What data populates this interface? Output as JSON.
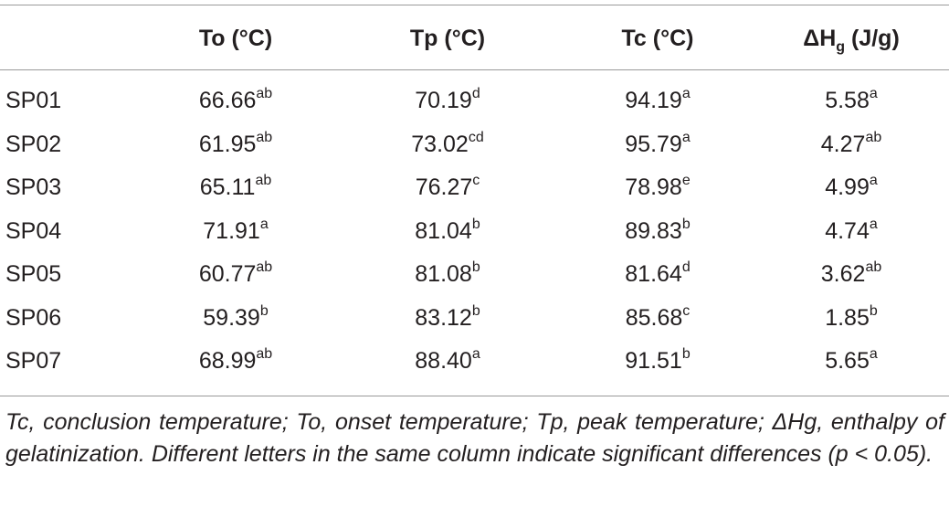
{
  "table": {
    "headers": {
      "col_id": "",
      "to": "To (°C)",
      "tp": "Tp (°C)",
      "tc": "Tc (°C)",
      "dh_delta": "ΔH",
      "dh_sub": "g",
      "dh_unit": " (J/g)"
    },
    "rows": [
      {
        "id": "SP01",
        "to": "66.66",
        "to_sup": "ab",
        "tp": "70.19",
        "tp_sup": "d",
        "tc": "94.19",
        "tc_sup": "a",
        "dh": "5.58",
        "dh_sup": "a"
      },
      {
        "id": "SP02",
        "to": "61.95",
        "to_sup": "ab",
        "tp": "73.02",
        "tp_sup": "cd",
        "tc": "95.79",
        "tc_sup": "a",
        "dh": "4.27",
        "dh_sup": "ab"
      },
      {
        "id": "SP03",
        "to": "65.11",
        "to_sup": "ab",
        "tp": "76.27",
        "tp_sup": "c",
        "tc": "78.98",
        "tc_sup": "e",
        "dh": "4.99",
        "dh_sup": "a"
      },
      {
        "id": "SP04",
        "to": "71.91",
        "to_sup": "a",
        "tp": "81.04",
        "tp_sup": "b",
        "tc": "89.83",
        "tc_sup": "b",
        "dh": "4.74",
        "dh_sup": "a"
      },
      {
        "id": "SP05",
        "to": "60.77",
        "to_sup": "ab",
        "tp": "81.08",
        "tp_sup": "b",
        "tc": "81.64",
        "tc_sup": "d",
        "dh": "3.62",
        "dh_sup": "ab"
      },
      {
        "id": "SP06",
        "to": "59.39",
        "to_sup": "b",
        "tp": "83.12",
        "tp_sup": "b",
        "tc": "85.68",
        "tc_sup": "c",
        "dh": "1.85",
        "dh_sup": "b"
      },
      {
        "id": "SP07",
        "to": "68.99",
        "to_sup": "ab",
        "tp": "88.40",
        "tp_sup": "a",
        "tc": "91.51",
        "tc_sup": "b",
        "dh": "5.65",
        "dh_sup": "a"
      }
    ]
  },
  "footnote": "Tc, conclusion temperature; To, onset temperature; Tp, peak temperature; ΔHg, enthalpy of gelatinization. Different letters in the same column indicate significant differences (p < 0.05)."
}
